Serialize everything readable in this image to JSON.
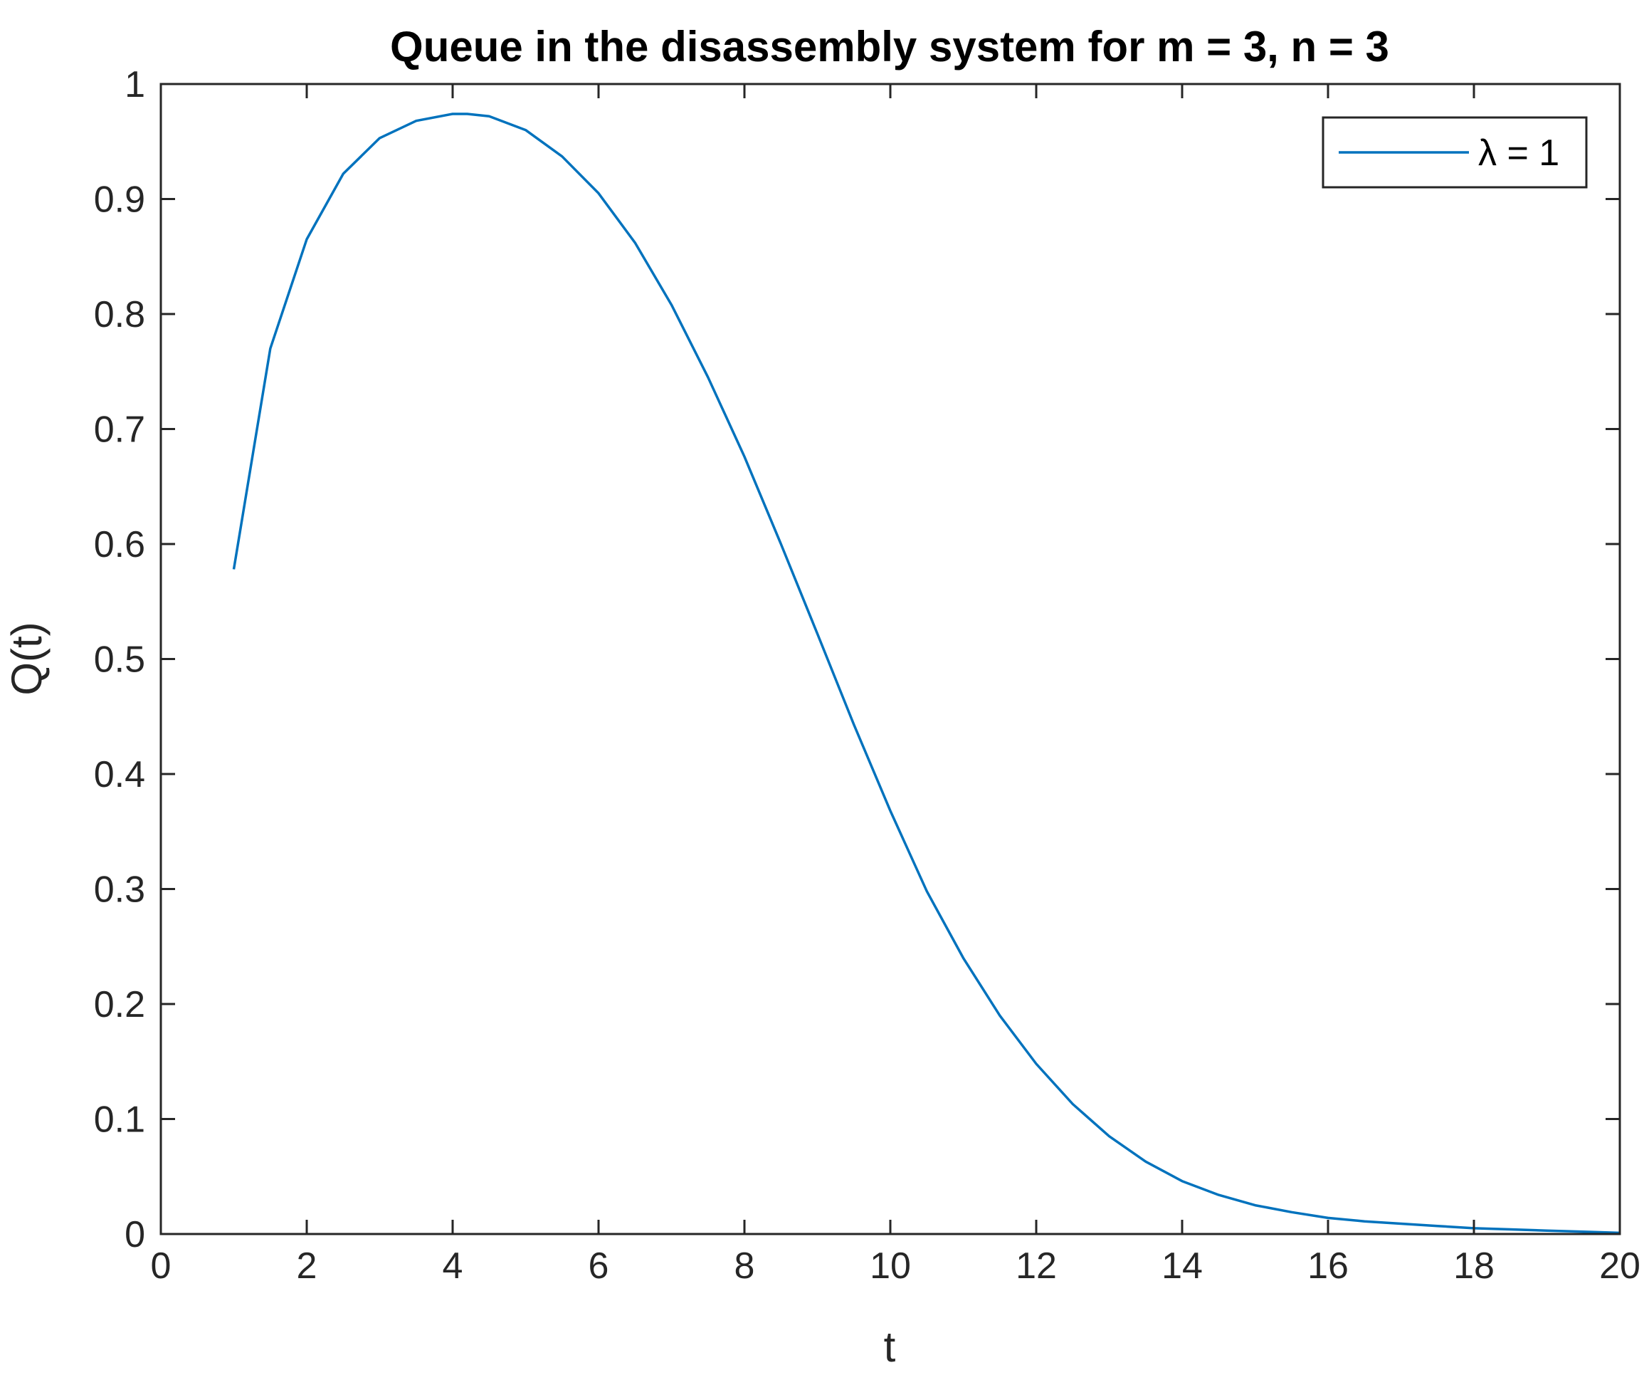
{
  "chart_data": {
    "type": "line",
    "title": "Queue in the disassembly system for m = 3, n = 3",
    "xlabel": "t",
    "ylabel": "Q(t)",
    "xlim": [
      0,
      20
    ],
    "ylim": [
      0,
      1
    ],
    "xticks": [
      "0",
      "2",
      "4",
      "6",
      "8",
      "10",
      "12",
      "14",
      "16",
      "18",
      "20"
    ],
    "yticks": [
      "0",
      "0.1",
      "0.2",
      "0.3",
      "0.4",
      "0.5",
      "0.6",
      "0.7",
      "0.8",
      "0.9",
      "1"
    ],
    "grid": false,
    "legend_position": "top-right",
    "series": [
      {
        "name": "λ = 1",
        "color": "#0072BD",
        "x": [
          1,
          1.5,
          2,
          2.5,
          3,
          3.5,
          4,
          4.2,
          4.5,
          5,
          5.5,
          6,
          6.5,
          7,
          7.5,
          8,
          8.5,
          9,
          9.5,
          10,
          10.5,
          11,
          11.5,
          12,
          12.5,
          13,
          13.5,
          14,
          14.5,
          15,
          15.5,
          16,
          16.5,
          17,
          17.5,
          18,
          18.5,
          19,
          19.5,
          20
        ],
        "y": [
          0.578,
          0.77,
          0.865,
          0.922,
          0.953,
          0.968,
          0.974,
          0.974,
          0.972,
          0.96,
          0.937,
          0.905,
          0.862,
          0.808,
          0.745,
          0.676,
          0.6,
          0.522,
          0.443,
          0.368,
          0.298,
          0.24,
          0.19,
          0.148,
          0.113,
          0.085,
          0.063,
          0.046,
          0.034,
          0.025,
          0.019,
          0.014,
          0.011,
          0.009,
          0.007,
          0.005,
          0.004,
          0.003,
          0.002,
          0.001
        ]
      }
    ]
  }
}
